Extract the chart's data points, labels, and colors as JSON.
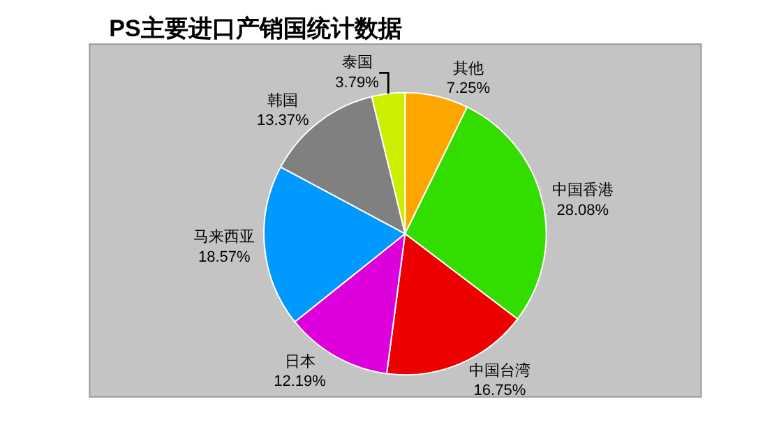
{
  "chart_data": {
    "type": "pie",
    "title": "PS主要进口产销国统计数据",
    "categories": [
      "其他",
      "中国香港",
      "中国台湾",
      "日本",
      "马来西亚",
      "韩国",
      "泰国"
    ],
    "values": [
      7.25,
      28.08,
      16.75,
      12.19,
      18.57,
      13.37,
      3.79
    ],
    "value_labels": [
      "7.25%",
      "28.08%",
      "16.75%",
      "12.19%",
      "18.57%",
      "13.37%",
      "3.79%"
    ],
    "colors": [
      "#ffa500",
      "#33dd00",
      "#ee0000",
      "#dd00dd",
      "#0099ff",
      "#808080",
      "#ccee00"
    ],
    "legend": false
  }
}
